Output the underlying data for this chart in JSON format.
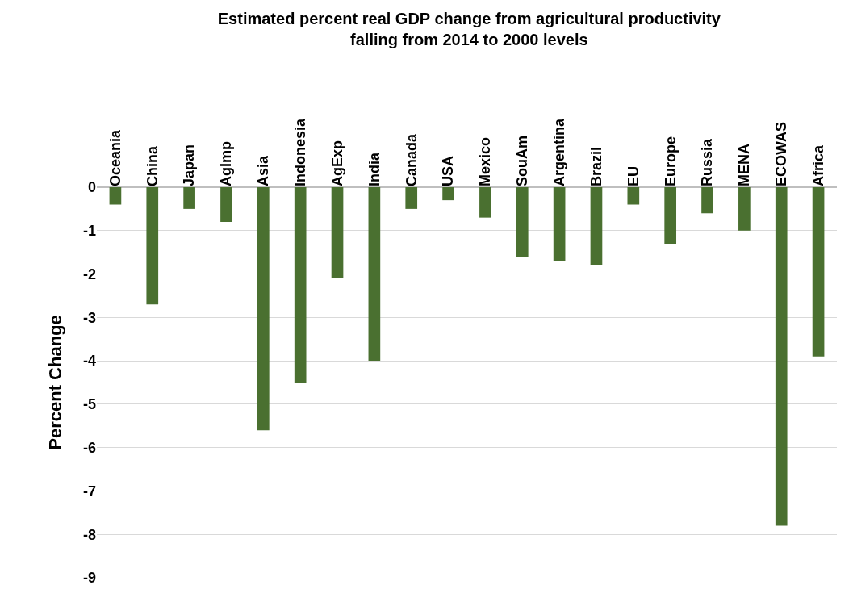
{
  "chart_data": {
    "type": "bar",
    "title": "Estimated percent real GDP change from agricultural productivity\nfalling from 2014 to 2000 levels",
    "ylabel": "Percent Change",
    "categories": [
      "Oceania",
      "China",
      "Japan",
      "AgImp",
      "Asia",
      "Indonesia",
      "AgExp",
      "India",
      "Canada",
      "USA",
      "Mexico",
      "SouAm",
      "Argentina",
      "Brazil",
      "EU",
      "Europe",
      "Russia",
      "MENA",
      "ECOWAS",
      "Africa"
    ],
    "values": [
      -0.4,
      -2.7,
      -0.5,
      -0.8,
      -5.6,
      -4.5,
      -2.1,
      -4.0,
      -0.5,
      -0.3,
      -0.7,
      -1.6,
      -1.7,
      -1.8,
      -0.4,
      -1.3,
      -0.6,
      -1.0,
      -7.8,
      -3.9
    ],
    "color": "#4a7030",
    "ylim": [
      -9,
      0
    ],
    "yticks": [
      0,
      -1,
      -2,
      -3,
      -4,
      -5,
      -6,
      -7,
      -8,
      -9
    ],
    "grid": "y"
  }
}
